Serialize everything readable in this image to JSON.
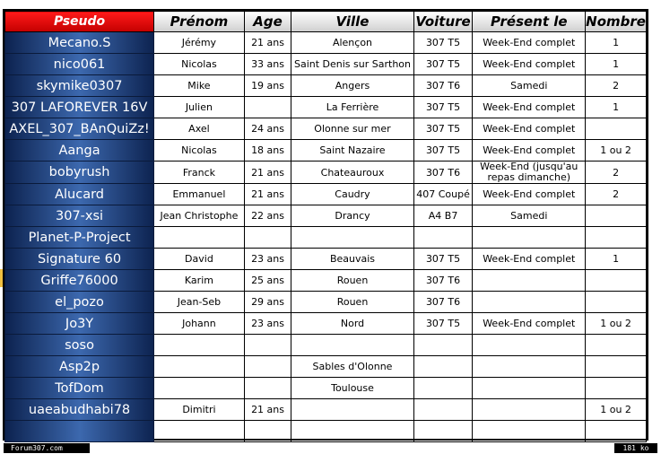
{
  "columns": [
    "Pseudo",
    "Prénom",
    "Age",
    "Ville",
    "Voiture",
    "Présent le",
    "Nombre"
  ],
  "rows": [
    {
      "pseudo": "Mecano.S",
      "prenom": "Jérémy",
      "age": "21 ans",
      "ville": "Alençon",
      "voiture": "307 T5",
      "present": "Week-End complet",
      "nombre": "1"
    },
    {
      "pseudo": "nico061",
      "prenom": "Nicolas",
      "age": "33 ans",
      "ville": "Saint Denis sur Sarthon",
      "voiture": "307 T5",
      "present": "Week-End complet",
      "nombre": "1"
    },
    {
      "pseudo": "skymike0307",
      "prenom": "Mike",
      "age": "19 ans",
      "ville": "Angers",
      "voiture": "307 T6",
      "present": "Samedi",
      "nombre": "2"
    },
    {
      "pseudo": "307 LAFOREVER 16V",
      "prenom": "Julien",
      "age": "",
      "ville": "La Ferrière",
      "voiture": "307 T5",
      "present": "Week-End complet",
      "nombre": "1"
    },
    {
      "pseudo": "AXEL_307_BAnQuiZz!",
      "prenom": "Axel",
      "age": "24 ans",
      "ville": "Olonne sur mer",
      "voiture": "307 T5",
      "present": "Week-End complet",
      "nombre": ""
    },
    {
      "pseudo": "Aanga",
      "prenom": "Nicolas",
      "age": "18 ans",
      "ville": "Saint Nazaire",
      "voiture": "307 T5",
      "present": "Week-End complet",
      "nombre": "1 ou 2"
    },
    {
      "pseudo": "bobyrush",
      "prenom": "Franck",
      "age": "21 ans",
      "ville": "Chateauroux",
      "voiture": "307 T6",
      "present": "Week-End (jusqu'au repas dimanche)",
      "nombre": "2"
    },
    {
      "pseudo": "Alucard",
      "prenom": "Emmanuel",
      "age": "21 ans",
      "ville": "Caudry",
      "voiture": "407 Coupé",
      "present": "Week-End complet",
      "nombre": "2"
    },
    {
      "pseudo": "307-xsi",
      "prenom": "Jean Christophe",
      "age": "22 ans",
      "ville": "Drancy",
      "voiture": "A4 B7",
      "present": "Samedi",
      "nombre": ""
    },
    {
      "pseudo": "Planet-P-Project",
      "prenom": "",
      "age": "",
      "ville": "",
      "voiture": "",
      "present": "",
      "nombre": ""
    },
    {
      "pseudo": "Signature 60",
      "prenom": "David",
      "age": "23 ans",
      "ville": "Beauvais",
      "voiture": "307 T5",
      "present": "Week-End complet",
      "nombre": "1"
    },
    {
      "pseudo": "Griffe76000",
      "prenom": "Karim",
      "age": "25 ans",
      "ville": "Rouen",
      "voiture": "307 T6",
      "present": "",
      "nombre": ""
    },
    {
      "pseudo": "el_pozo",
      "prenom": "Jean-Seb",
      "age": "29 ans",
      "ville": "Rouen",
      "voiture": "307 T6",
      "present": "",
      "nombre": ""
    },
    {
      "pseudo": "Jo3Y",
      "prenom": "Johann",
      "age": "23 ans",
      "ville": "Nord",
      "voiture": "307 T5",
      "present": "Week-End complet",
      "nombre": "1 ou 2"
    },
    {
      "pseudo": "soso",
      "prenom": "",
      "age": "",
      "ville": "",
      "voiture": "",
      "present": "",
      "nombre": ""
    },
    {
      "pseudo": "Asp2p",
      "prenom": "",
      "age": "",
      "ville": "Sables d'Olonne",
      "voiture": "",
      "present": "",
      "nombre": ""
    },
    {
      "pseudo": "TofDom",
      "prenom": "",
      "age": "",
      "ville": "Toulouse",
      "voiture": "",
      "present": "",
      "nombre": ""
    },
    {
      "pseudo": "uaeabudhabi78",
      "prenom": "Dimitri",
      "age": "21 ans",
      "ville": "",
      "voiture": "",
      "present": "",
      "nombre": "1 ou 2"
    },
    {
      "pseudo": "",
      "prenom": "",
      "age": "",
      "ville": "",
      "voiture": "",
      "present": "",
      "nombre": ""
    }
  ],
  "footer": {
    "left": "Forum307.com",
    "right": "181 ko"
  }
}
